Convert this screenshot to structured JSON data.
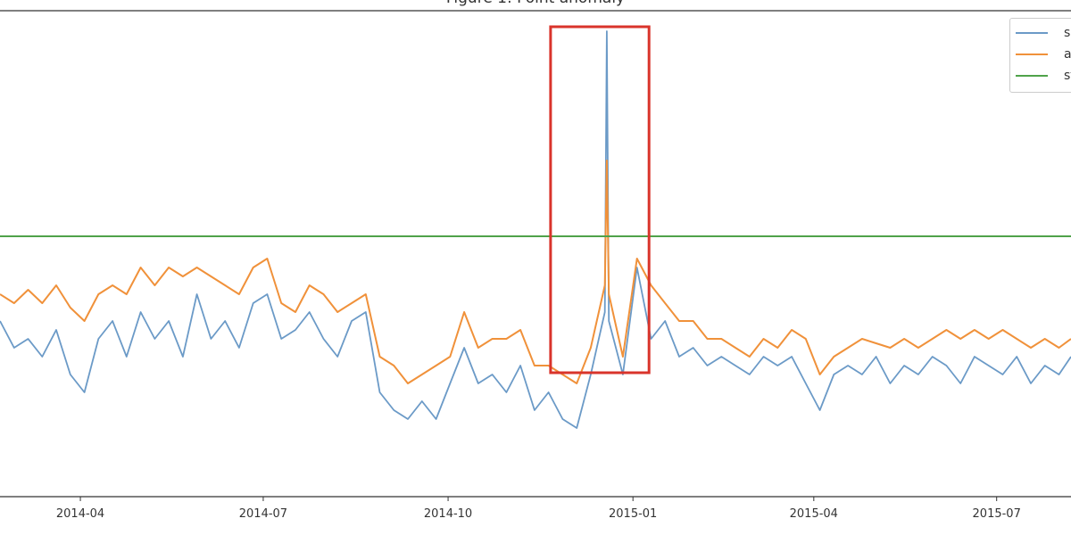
{
  "chart_data": {
    "type": "line",
    "title": "Figure 1: Point anomaly",
    "xlabel": "",
    "ylabel": "",
    "x_type": "date",
    "xlim": [
      "2014-02-20",
      "2015-08-07"
    ],
    "ylim": [
      0,
      545
    ],
    "grid": false,
    "legend_placement": "top-right",
    "x_tick_labels": [
      "2014-04",
      "2014-07",
      "2014-10",
      "2015-01",
      "2015-04",
      "2015-07"
    ],
    "x_ticks": [
      "2014-04-01",
      "2014-07-01",
      "2014-10-01",
      "2015-01-01",
      "2015-04-01",
      "2015-07-01"
    ],
    "x": [
      "2014-02-20",
      "2014-02-27",
      "2014-03-06",
      "2014-03-13",
      "2014-03-20",
      "2014-03-27",
      "2014-04-03",
      "2014-04-10",
      "2014-04-17",
      "2014-04-24",
      "2014-05-01",
      "2014-05-08",
      "2014-05-15",
      "2014-05-22",
      "2014-05-29",
      "2014-06-05",
      "2014-06-12",
      "2014-06-19",
      "2014-06-26",
      "2014-07-03",
      "2014-07-10",
      "2014-07-17",
      "2014-07-24",
      "2014-07-31",
      "2014-08-07",
      "2014-08-14",
      "2014-08-21",
      "2014-08-28",
      "2014-09-04",
      "2014-09-11",
      "2014-09-18",
      "2014-09-25",
      "2014-10-02",
      "2014-10-09",
      "2014-10-16",
      "2014-10-23",
      "2014-10-30",
      "2014-11-06",
      "2014-11-13",
      "2014-11-20",
      "2014-11-27",
      "2014-12-04",
      "2014-12-11",
      "2014-12-18",
      "2014-12-19",
      "2014-12-20",
      "2014-12-27",
      "2015-01-03",
      "2015-01-10",
      "2015-01-17",
      "2015-01-24",
      "2015-01-31",
      "2015-02-07",
      "2015-02-14",
      "2015-02-21",
      "2015-02-28",
      "2015-03-07",
      "2015-03-14",
      "2015-03-21",
      "2015-03-28",
      "2015-04-04",
      "2015-04-11",
      "2015-04-18",
      "2015-04-25",
      "2015-05-02",
      "2015-05-09",
      "2015-05-16",
      "2015-05-23",
      "2015-05-30",
      "2015-06-06",
      "2015-06-13",
      "2015-06-20",
      "2015-06-27",
      "2015-07-04",
      "2015-07-11",
      "2015-07-18",
      "2015-07-25",
      "2015-08-01",
      "2015-08-07"
    ],
    "series": [
      {
        "name": "se",
        "color": "#6b9ac7",
        "values": [
          197,
          167,
          177,
          157,
          187,
          137,
          117,
          177,
          197,
          157,
          207,
          177,
          197,
          157,
          227,
          177,
          197,
          167,
          217,
          227,
          177,
          187,
          207,
          177,
          157,
          197,
          207,
          117,
          97,
          87,
          107,
          87,
          127,
          167,
          127,
          137,
          117,
          147,
          97,
          117,
          87,
          77,
          137,
          207,
          522,
          197,
          137,
          257,
          177,
          197,
          157,
          167,
          147,
          157,
          147,
          137,
          157,
          147,
          157,
          127,
          97,
          137,
          147,
          137,
          157,
          127,
          147,
          137,
          157,
          147,
          127,
          157,
          147,
          137,
          157,
          127,
          147,
          137,
          157
        ]
      },
      {
        "name": "an",
        "color": "#f0913a",
        "values": [
          227,
          217,
          232,
          217,
          237,
          212,
          197,
          227,
          237,
          227,
          257,
          237,
          257,
          247,
          257,
          247,
          237,
          227,
          257,
          267,
          217,
          207,
          237,
          227,
          207,
          217,
          227,
          157,
          147,
          127,
          137,
          147,
          157,
          207,
          167,
          177,
          177,
          187,
          147,
          147,
          137,
          127,
          167,
          237,
          377,
          227,
          157,
          267,
          237,
          217,
          197,
          197,
          177,
          177,
          167,
          157,
          177,
          167,
          187,
          177,
          137,
          157,
          167,
          177,
          172,
          167,
          177,
          167,
          177,
          187,
          177,
          187,
          177,
          187,
          177,
          167,
          177,
          167,
          177
        ]
      },
      {
        "name": "st",
        "color": "#4fa24a",
        "constant": 292
      }
    ],
    "annotations": [
      {
        "type": "rectangle",
        "color": "#d9342b",
        "x": [
          "2014-11-21",
          "2015-01-09"
        ],
        "y": [
          139,
          527
        ]
      }
    ]
  }
}
